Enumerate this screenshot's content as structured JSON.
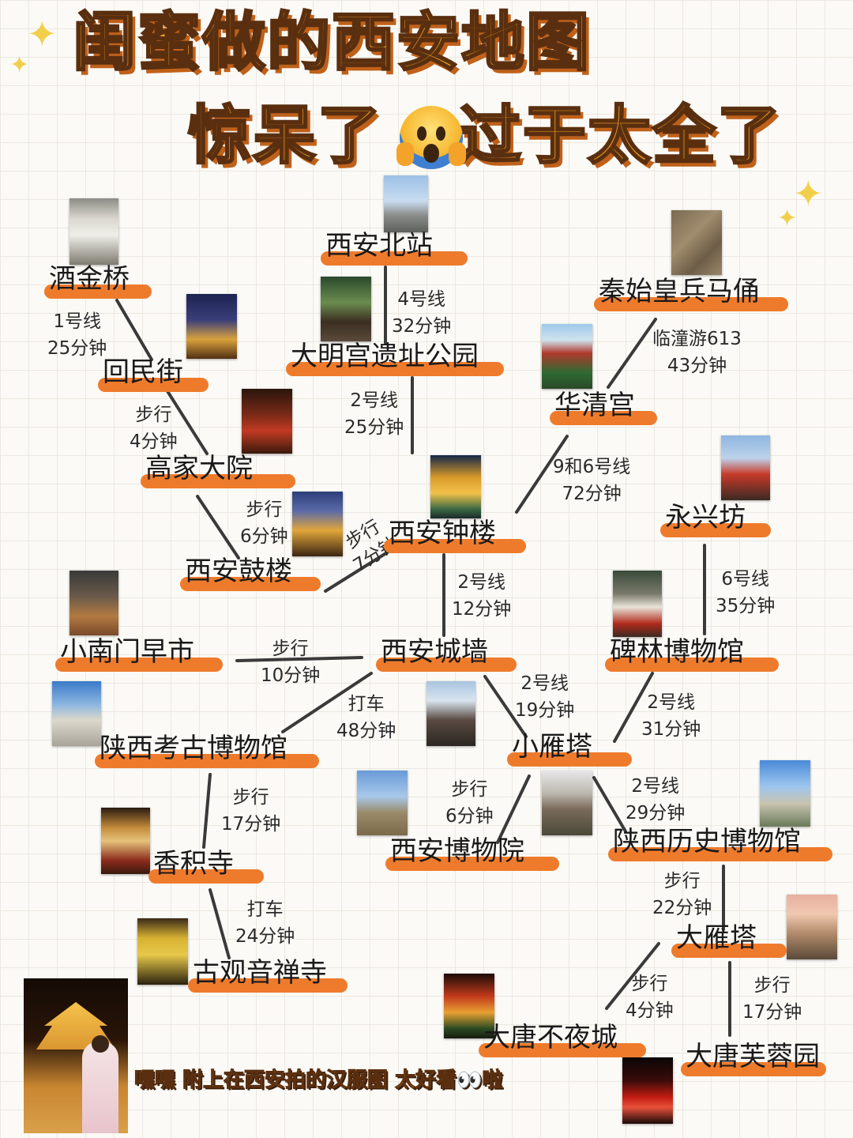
{
  "header": {
    "title_line1": "闺蜜做的西安地图",
    "title_line2_a": "惊呆了",
    "title_line2_b": "过于太全了",
    "emoji_icon": "face-screaming-in-fear-icon",
    "sparkle_icon": "sparkles-icon"
  },
  "places": {
    "beizhan": "西安北站",
    "jiujinqiao": "酒金桥",
    "bingmayong": "秦始皇兵马俑",
    "huiminjie": "回民街",
    "damingong": "大明宫遗址公园",
    "huaqinggong": "华清宫",
    "gaojiadayuan": "高家大院",
    "zhonglou": "西安钟楼",
    "yongxingfang": "永兴坊",
    "gulou": "西安鼓楼",
    "xiaonanmen": "小南门早市",
    "chengqiang": "西安城墙",
    "beilin": "碑林博物馆",
    "kaogu": "陕西考古博物馆",
    "xiaoyanta": "小雁塔",
    "xianbowuyuan": "西安博物院",
    "lishibowuguan": "陕西历史博物馆",
    "xiangjisi": "香积寺",
    "dayanta": "大雁塔",
    "guanyinsi": "古观音禅寺",
    "budaocheng": "大唐不夜城",
    "furongyuan": "大唐芙蓉园"
  },
  "routes": {
    "jiujin_huimin": [
      "1号线",
      "25分钟"
    ],
    "beizhan_daming": [
      "4号线",
      "32分钟"
    ],
    "bingma_huaqing": [
      "临潼游613",
      "43分钟"
    ],
    "huimin_gaojia": [
      "步行",
      "4分钟"
    ],
    "daming_zhonglou": [
      "2号线",
      "25分钟"
    ],
    "huaqing_zhonglou": [
      "9和6号线",
      "72分钟"
    ],
    "gaojia_gulou": [
      "步行",
      "6分钟"
    ],
    "gulou_zhonglou": [
      "步行",
      "7分钟"
    ],
    "zhonglou_chengqiang": [
      "2号线",
      "12分钟"
    ],
    "yongxing_beilin": [
      "6号线",
      "35分钟"
    ],
    "xiaonanmen_chengqiang": [
      "步行",
      "10分钟"
    ],
    "chengqiang_kaogu": [
      "打车",
      "48分钟"
    ],
    "chengqiang_xiaoyan": [
      "2号线",
      "19分钟"
    ],
    "beilin_xiaoyan": [
      "2号线",
      "31分钟"
    ],
    "kaogu_xiangji": [
      "步行",
      "17分钟"
    ],
    "xiaoyan_bowuyuan": [
      "步行",
      "6分钟"
    ],
    "xiaoyan_lishi": [
      "2号线",
      "29分钟"
    ],
    "xiangji_guanyin": [
      "打车",
      "24分钟"
    ],
    "lishi_dayan": [
      "步行",
      "22分钟"
    ],
    "dayan_budaocheng": [
      "步行",
      "4分钟"
    ],
    "dayan_furong": [
      "步行",
      "17分钟"
    ]
  },
  "footer": {
    "text": "嘿嘿 附上在西安拍的汉服图 太好看👀啦"
  },
  "colors": {
    "title_fill": "#f3a21d",
    "title_outline": "#5a2f10",
    "label_highlight": "#ee7b2c",
    "route_line": "#3a3a3a",
    "grid": "#ebe8e0",
    "background": "#fbfaf6"
  }
}
